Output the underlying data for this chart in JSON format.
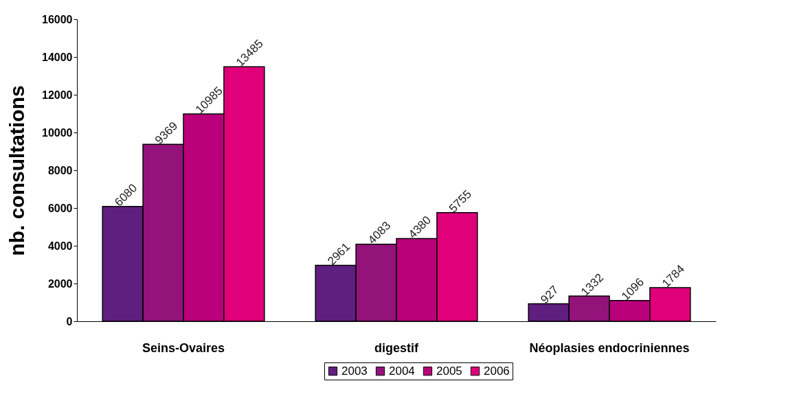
{
  "chart_data": {
    "type": "bar",
    "ylabel": "nb. consultations",
    "categories": [
      "Seins-Ovaires",
      "digestif",
      "Néoplasies endocriniennes"
    ],
    "series": [
      {
        "name": "2003",
        "color": "#5f1f7f",
        "values": [
          6080,
          2961,
          927
        ]
      },
      {
        "name": "2004",
        "color": "#93137b",
        "values": [
          9369,
          4083,
          1332
        ]
      },
      {
        "name": "2005",
        "color": "#b9007a",
        "values": [
          10985,
          4380,
          1096
        ]
      },
      {
        "name": "2006",
        "color": "#e0007a",
        "values": [
          13485,
          5755,
          1784
        ]
      }
    ],
    "ylim": [
      0,
      16000
    ],
    "yticks": [
      0,
      2000,
      4000,
      6000,
      8000,
      10000,
      12000,
      14000,
      16000
    ],
    "grid": false,
    "legend": "bottom",
    "data_labels": true
  }
}
